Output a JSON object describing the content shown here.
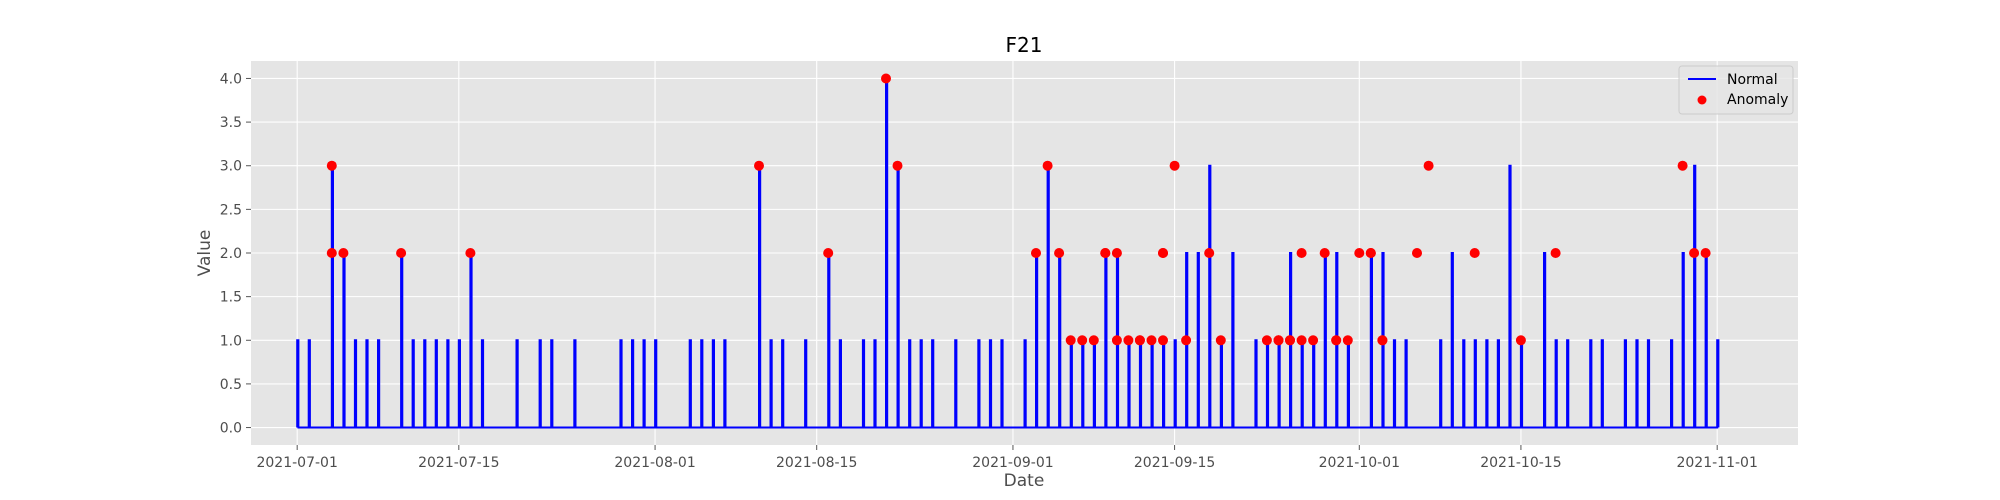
{
  "chart_data": {
    "type": "line",
    "title": "F21",
    "xlabel": "Date",
    "ylabel": "Value",
    "x_range": [
      "2021-06-27",
      "2021-11-08"
    ],
    "ylim": [
      -0.2,
      4.2
    ],
    "xticks": [
      "2021-07-01",
      "2021-07-15",
      "2021-08-01",
      "2021-08-15",
      "2021-09-01",
      "2021-09-15",
      "2021-10-01",
      "2021-10-15",
      "2021-11-01"
    ],
    "yticks": [
      "0.0",
      "0.5",
      "1.0",
      "1.5",
      "2.0",
      "2.5",
      "3.0",
      "3.5",
      "4.0"
    ],
    "grid": true,
    "legend_position": "top-right",
    "style": {
      "background": "#e5e5e5",
      "grid_color": "#ffffff",
      "line_color": "#0000ff",
      "anomaly_color": "#ff0000"
    },
    "series": [
      {
        "name": "Normal",
        "kind": "line",
        "x": [
          "2021-07-01",
          "2021-07-02",
          "2021-07-03",
          "2021-07-04",
          "2021-07-05",
          "2021-07-06",
          "2021-07-07",
          "2021-07-08",
          "2021-07-09",
          "2021-07-10",
          "2021-07-11",
          "2021-07-12",
          "2021-07-13",
          "2021-07-14",
          "2021-07-15",
          "2021-07-16",
          "2021-07-17",
          "2021-07-18",
          "2021-07-19",
          "2021-07-20",
          "2021-07-21",
          "2021-07-22",
          "2021-07-23",
          "2021-07-24",
          "2021-07-25",
          "2021-07-26",
          "2021-07-27",
          "2021-07-28",
          "2021-07-29",
          "2021-07-30",
          "2021-07-31",
          "2021-08-01",
          "2021-08-02",
          "2021-08-03",
          "2021-08-04",
          "2021-08-05",
          "2021-08-06",
          "2021-08-07",
          "2021-08-08",
          "2021-08-09",
          "2021-08-10",
          "2021-08-11",
          "2021-08-12",
          "2021-08-13",
          "2021-08-14",
          "2021-08-15",
          "2021-08-16",
          "2021-08-17",
          "2021-08-18",
          "2021-08-19",
          "2021-08-20",
          "2021-08-21",
          "2021-08-22",
          "2021-08-23",
          "2021-08-24",
          "2021-08-25",
          "2021-08-26",
          "2021-08-27",
          "2021-08-28",
          "2021-08-29",
          "2021-08-30",
          "2021-08-31",
          "2021-09-01",
          "2021-09-02",
          "2021-09-03",
          "2021-09-04",
          "2021-09-05",
          "2021-09-06",
          "2021-09-07",
          "2021-09-08",
          "2021-09-09",
          "2021-09-10",
          "2021-09-11",
          "2021-09-12",
          "2021-09-13",
          "2021-09-14",
          "2021-09-15",
          "2021-09-16",
          "2021-09-17",
          "2021-09-18",
          "2021-09-19",
          "2021-09-20",
          "2021-09-21",
          "2021-09-22",
          "2021-09-23",
          "2021-09-24",
          "2021-09-25",
          "2021-09-26",
          "2021-09-27",
          "2021-09-28",
          "2021-09-29",
          "2021-09-30",
          "2021-10-01",
          "2021-10-02",
          "2021-10-03",
          "2021-10-04",
          "2021-10-05",
          "2021-10-06",
          "2021-10-07",
          "2021-10-08",
          "2021-10-09",
          "2021-10-10",
          "2021-10-11",
          "2021-10-12",
          "2021-10-13",
          "2021-10-14",
          "2021-10-15",
          "2021-10-16",
          "2021-10-17",
          "2021-10-18",
          "2021-10-19",
          "2021-10-20",
          "2021-10-21",
          "2021-10-22",
          "2021-10-23",
          "2021-10-24",
          "2021-10-25",
          "2021-10-26",
          "2021-10-27",
          "2021-10-28",
          "2021-10-29",
          "2021-10-30",
          "2021-10-31",
          "2021-11-01"
        ],
        "values": [
          1,
          1,
          0,
          3,
          2,
          1,
          1,
          1,
          0,
          2,
          1,
          1,
          1,
          1,
          1,
          2,
          1,
          0,
          0,
          1,
          0,
          1,
          1,
          0,
          1,
          0,
          0,
          0,
          1,
          1,
          1,
          1,
          0,
          0,
          1,
          1,
          1,
          1,
          0,
          0,
          3,
          1,
          1,
          0,
          1,
          0,
          2,
          1,
          0,
          1,
          1,
          4,
          3,
          1,
          1,
          1,
          0,
          1,
          0,
          1,
          1,
          1,
          0,
          1,
          2,
          3,
          2,
          1,
          1,
          1,
          2,
          2,
          1,
          1,
          1,
          1,
          1,
          2,
          2,
          3,
          1,
          2,
          0,
          1,
          1,
          1,
          2,
          1,
          1,
          2,
          2,
          1,
          0,
          2,
          2,
          1,
          1,
          0,
          0,
          1,
          2,
          1,
          1,
          1,
          1,
          3,
          1,
          0,
          2,
          1,
          1,
          0,
          1,
          1,
          0,
          1,
          1,
          1,
          0,
          1,
          2,
          3,
          2,
          1
        ]
      },
      {
        "name": "Anomaly",
        "kind": "scatter",
        "x": [
          "2021-07-04",
          "2021-07-04",
          "2021-07-05",
          "2021-07-10",
          "2021-07-16",
          "2021-08-10",
          "2021-08-16",
          "2021-08-21",
          "2021-08-22",
          "2021-09-03",
          "2021-09-04",
          "2021-09-05",
          "2021-09-06",
          "2021-09-07",
          "2021-09-08",
          "2021-09-09",
          "2021-09-09",
          "2021-09-10",
          "2021-09-10",
          "2021-09-11",
          "2021-09-12",
          "2021-09-12",
          "2021-09-13",
          "2021-09-14",
          "2021-09-14",
          "2021-09-14",
          "2021-09-15",
          "2021-09-16",
          "2021-09-18",
          "2021-09-19",
          "2021-09-23",
          "2021-09-24",
          "2021-09-24",
          "2021-09-25",
          "2021-09-25",
          "2021-09-26",
          "2021-09-26",
          "2021-09-27",
          "2021-09-28",
          "2021-09-29",
          "2021-09-29",
          "2021-09-30",
          "2021-10-01",
          "2021-10-02",
          "2021-10-02",
          "2021-10-03",
          "2021-10-03",
          "2021-10-06",
          "2021-10-07",
          "2021-10-11",
          "2021-10-15",
          "2021-10-18",
          "2021-10-29",
          "2021-10-30",
          "2021-10-31"
        ],
        "values": [
          3,
          2,
          2,
          2,
          2,
          3,
          2,
          4,
          3,
          2,
          3,
          2,
          1,
          1,
          1,
          2,
          2,
          2,
          1,
          1,
          1,
          1,
          1,
          1,
          2,
          2,
          3,
          1,
          2,
          1,
          1,
          1,
          1,
          1,
          1,
          2,
          1,
          1,
          2,
          1,
          1,
          1,
          2,
          2,
          2,
          1,
          1,
          2,
          3,
          2,
          1,
          2,
          3,
          2,
          2
        ]
      }
    ]
  }
}
